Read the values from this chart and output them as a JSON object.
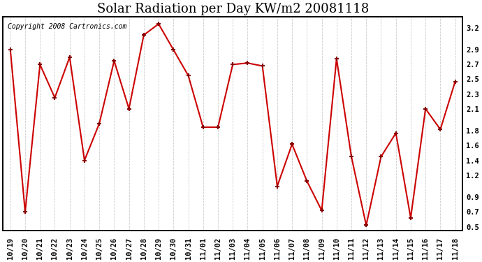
{
  "title": "Solar Radiation per Day KW/m2 20081118",
  "copyright": "Copyright 2008 Cartronics.com",
  "labels": [
    "10/19",
    "10/20",
    "10/21",
    "10/22",
    "10/23",
    "10/24",
    "10/25",
    "10/26",
    "10/27",
    "10/28",
    "10/29",
    "10/30",
    "10/31",
    "11/01",
    "11/02",
    "11/03",
    "11/04",
    "11/05",
    "11/06",
    "11/07",
    "11/08",
    "11/09",
    "11/10",
    "11/11",
    "11/12",
    "11/13",
    "11/14",
    "11/15",
    "11/16",
    "11/17",
    "11/18"
  ],
  "values": [
    2.9,
    0.7,
    2.7,
    2.25,
    2.8,
    1.4,
    1.9,
    2.75,
    2.1,
    3.1,
    3.25,
    2.9,
    2.55,
    1.85,
    1.85,
    2.7,
    2.72,
    2.68,
    1.05,
    1.62,
    1.12,
    0.72,
    2.78,
    1.45,
    0.52,
    1.45,
    1.77,
    0.62,
    2.1,
    1.82,
    2.47
  ],
  "ylim": [
    0.45,
    3.35
  ],
  "yticks": [
    0.5,
    0.7,
    0.9,
    1.2,
    1.4,
    1.6,
    1.8,
    2.1,
    2.3,
    2.5,
    2.7,
    2.9,
    3.2
  ],
  "line_color": "#cc0000",
  "marker_color": "#880000",
  "bg_color": "#ffffff",
  "grid_color": "#cccccc",
  "title_fontsize": 13,
  "tick_fontsize": 7.5,
  "copyright_fontsize": 7
}
